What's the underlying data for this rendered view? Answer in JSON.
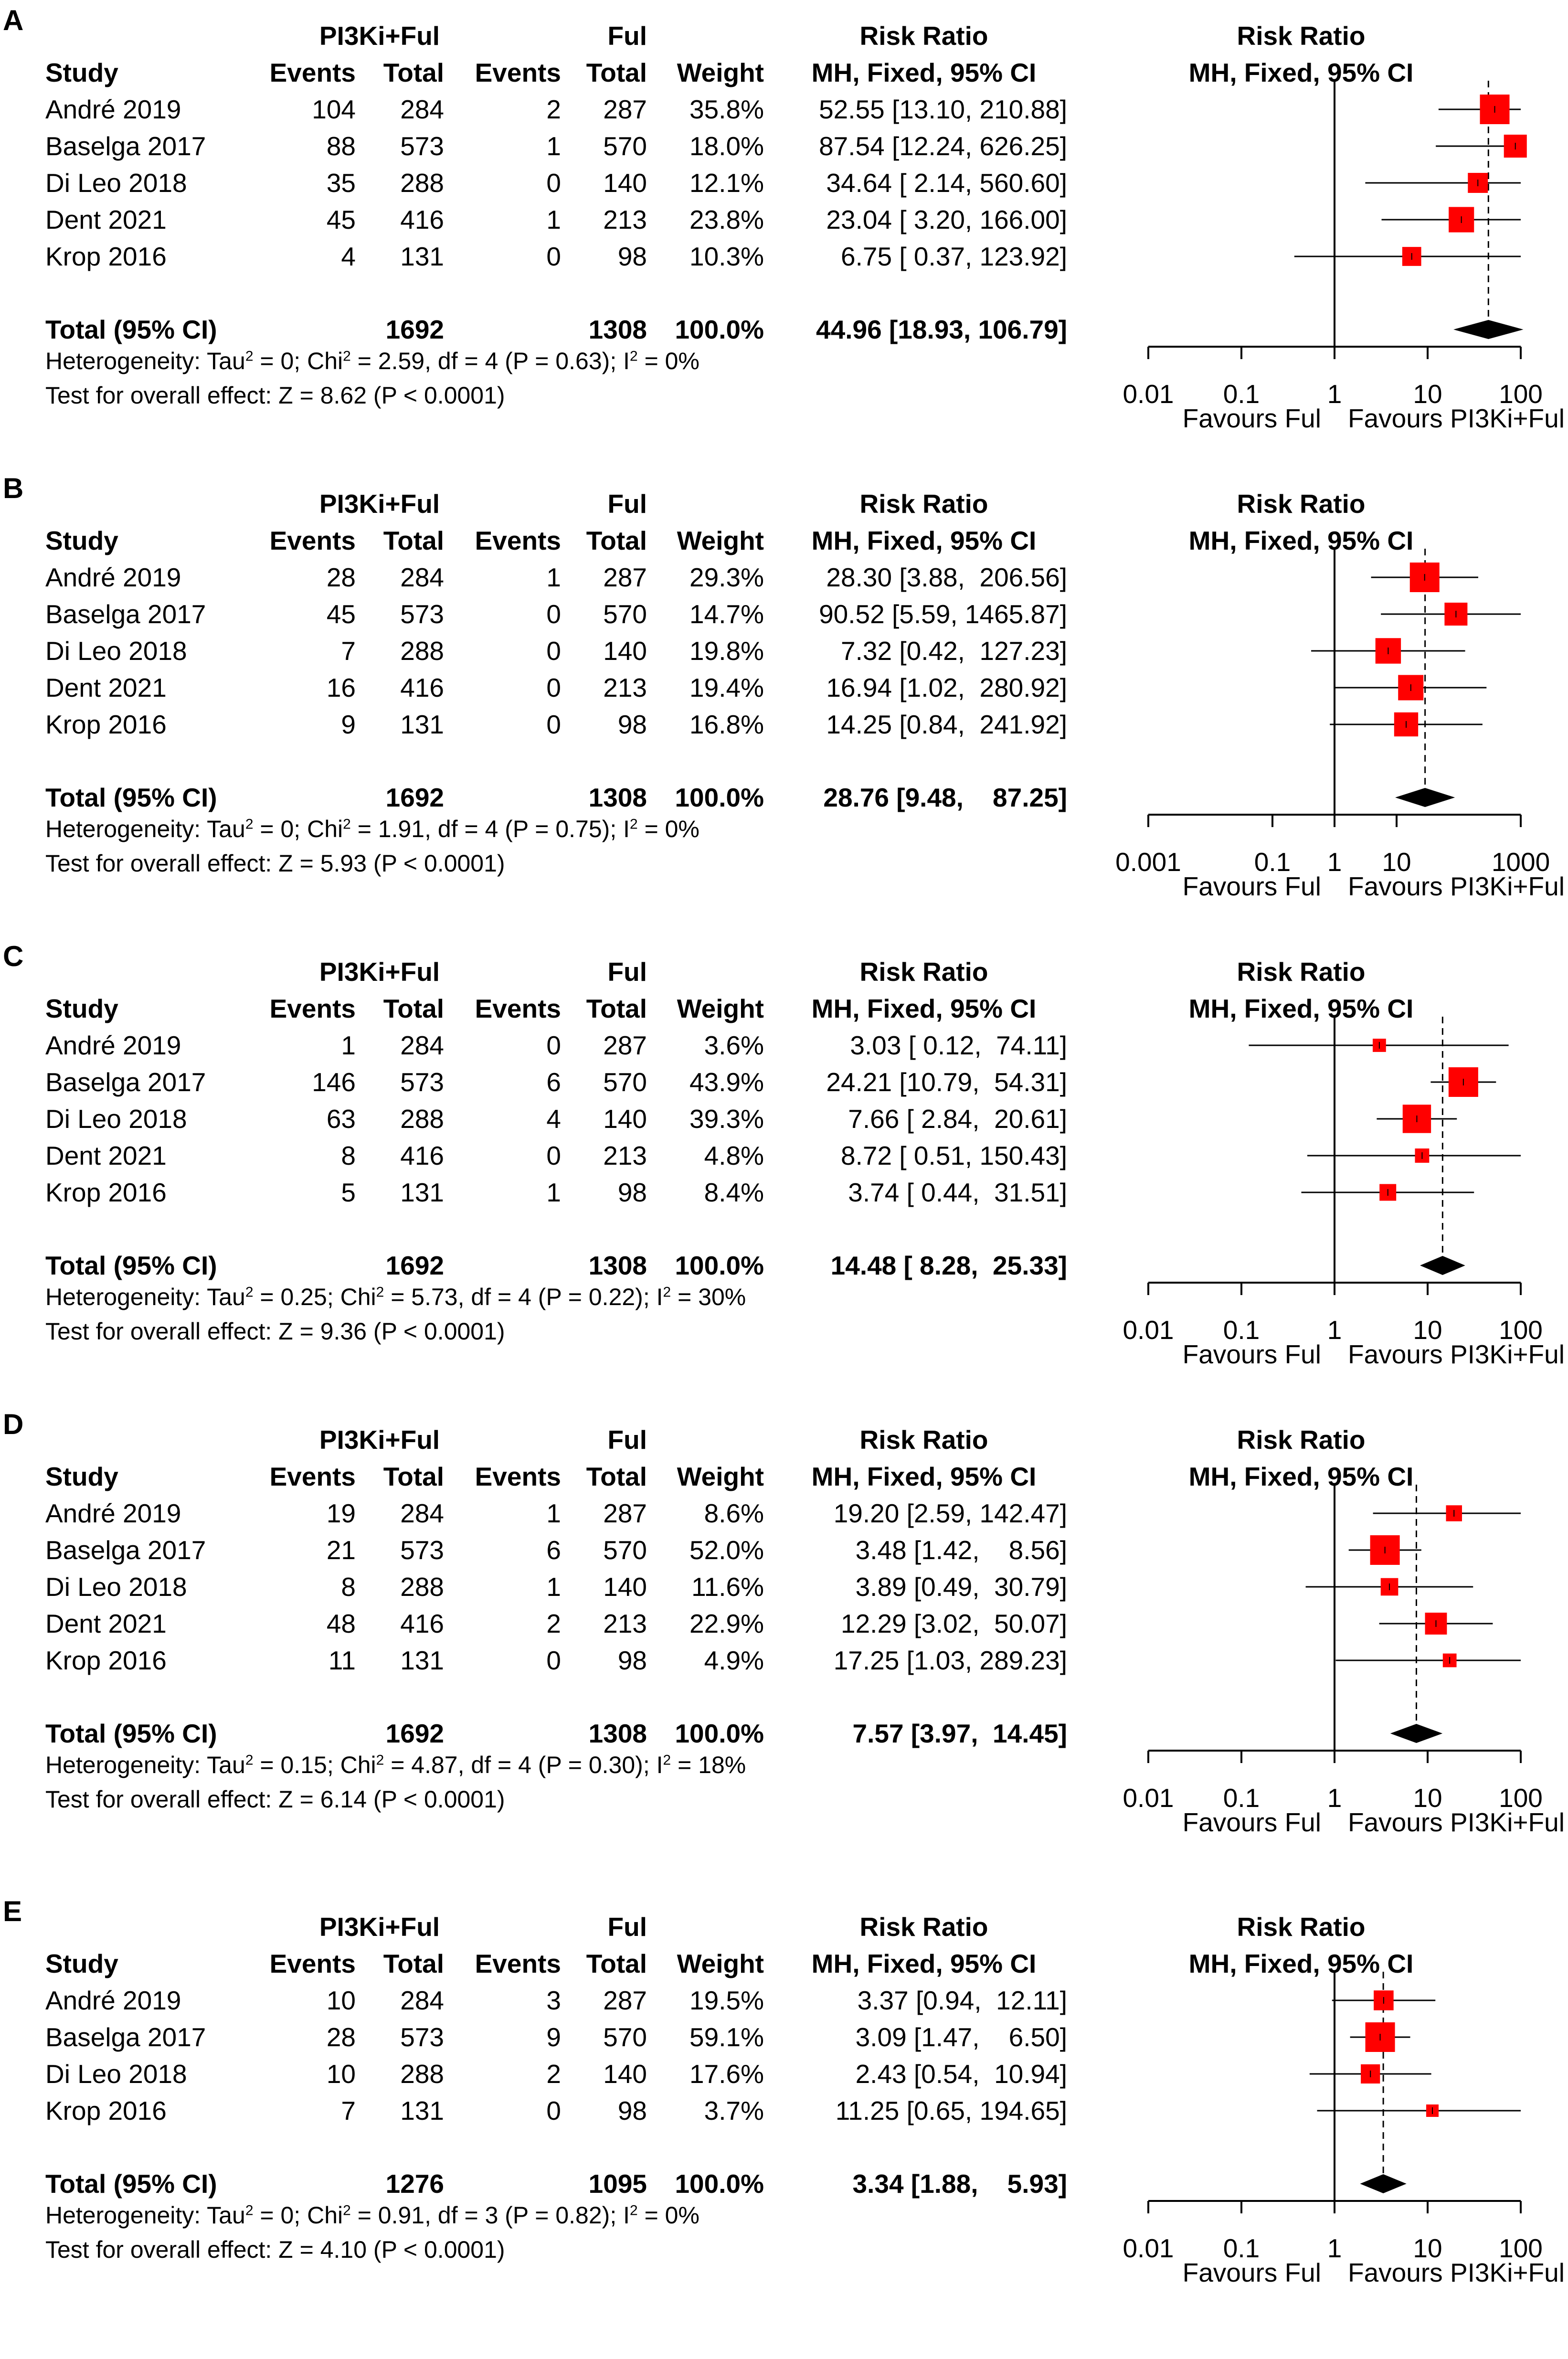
{
  "labels": {
    "study": "Study",
    "events": "Events",
    "total": "Total",
    "weight": "Weight",
    "group_exp": "PI3Ki+Ful",
    "group_ctrl": "Ful",
    "rr_title": "Risk Ratio",
    "rr_method": "MH, Fixed, 95% CI",
    "favours_left": "Favours Ful",
    "favours_right": "Favours PI3Ki+Ful",
    "total_row": "Total (95% CI)"
  },
  "colors": {
    "box": "#ff0000",
    "diamond": "#000000",
    "line": "#000000"
  },
  "chart_data": [
    {
      "panel": "A",
      "type": "forest",
      "scale": "log",
      "axis_ticks": [
        "0.01",
        "0.1",
        "1",
        "10",
        "100"
      ],
      "axis_range": [
        0.01,
        100
      ],
      "studies": [
        {
          "name": "André 2019",
          "ev_e": "104",
          "tot_e": "284",
          "ev_c": "2",
          "tot_c": "287",
          "weight": "35.8%",
          "ci_text": "52.55 [13.10, 210.88]",
          "rr": 52.55,
          "lo": 13.1,
          "hi": 210.88,
          "w": 35.8
        },
        {
          "name": "Baselga 2017",
          "ev_e": "88",
          "tot_e": "573",
          "ev_c": "1",
          "tot_c": "570",
          "weight": "18.0%",
          "ci_text": "87.54 [12.24, 626.25]",
          "rr": 87.54,
          "lo": 12.24,
          "hi": 626.25,
          "w": 18.0
        },
        {
          "name": "Di Leo 2018",
          "ev_e": "35",
          "tot_e": "288",
          "ev_c": "0",
          "tot_c": "140",
          "weight": "12.1%",
          "ci_text": "34.64 [ 2.14, 560.60]",
          "rr": 34.64,
          "lo": 2.14,
          "hi": 560.6,
          "w": 12.1
        },
        {
          "name": "Dent 2021",
          "ev_e": "45",
          "tot_e": "416",
          "ev_c": "1",
          "tot_c": "213",
          "weight": "23.8%",
          "ci_text": "23.04 [ 3.20, 166.00]",
          "rr": 23.04,
          "lo": 3.2,
          "hi": 166.0,
          "w": 23.8
        },
        {
          "name": "Krop 2016",
          "ev_e": "4",
          "tot_e": "131",
          "ev_c": "0",
          "tot_c": "98",
          "weight": "10.3%",
          "ci_text": "6.75 [ 0.37, 123.92]",
          "rr": 6.75,
          "lo": 0.37,
          "hi": 123.92,
          "w": 10.3
        }
      ],
      "total": {
        "tot_e": "1692",
        "tot_c": "1308",
        "weight": "100.0%",
        "ci_text": "44.96 [18.93, 106.79]",
        "rr": 44.96,
        "lo": 18.93,
        "hi": 106.79
      },
      "heterogeneity": {
        "tau": "0",
        "chi": "2.59",
        "rest": ", df = 4 (P = 0.63); I",
        "i2": "0%"
      },
      "overall_effect": "Test for overall effect: Z = 8.62 (P < 0.0001)"
    },
    {
      "panel": "B",
      "type": "forest",
      "scale": "log",
      "axis_ticks": [
        "0.001",
        "0.1",
        "1",
        "10",
        "1000"
      ],
      "axis_range": [
        0.001,
        1000
      ],
      "studies": [
        {
          "name": "André 2019",
          "ev_e": "28",
          "tot_e": "284",
          "ev_c": "1",
          "tot_c": "287",
          "weight": "29.3%",
          "ci_text": "28.30 [3.88,  206.56]",
          "rr": 28.3,
          "lo": 3.88,
          "hi": 206.56,
          "w": 29.3
        },
        {
          "name": "Baselga 2017",
          "ev_e": "45",
          "tot_e": "573",
          "ev_c": "0",
          "tot_c": "570",
          "weight": "14.7%",
          "ci_text": "90.52 [5.59, 1465.87]",
          "rr": 90.52,
          "lo": 5.59,
          "hi": 1465.87,
          "w": 14.7
        },
        {
          "name": "Di Leo 2018",
          "ev_e": "7",
          "tot_e": "288",
          "ev_c": "0",
          "tot_c": "140",
          "weight": "19.8%",
          "ci_text": "7.32 [0.42,  127.23]",
          "rr": 7.32,
          "lo": 0.42,
          "hi": 127.23,
          "w": 19.8
        },
        {
          "name": "Dent 2021",
          "ev_e": "16",
          "tot_e": "416",
          "ev_c": "0",
          "tot_c": "213",
          "weight": "19.4%",
          "ci_text": "16.94 [1.02,  280.92]",
          "rr": 16.94,
          "lo": 1.02,
          "hi": 280.92,
          "w": 19.4
        },
        {
          "name": "Krop 2016",
          "ev_e": "9",
          "tot_e": "131",
          "ev_c": "0",
          "tot_c": "98",
          "weight": "16.8%",
          "ci_text": "14.25 [0.84,  241.92]",
          "rr": 14.25,
          "lo": 0.84,
          "hi": 241.92,
          "w": 16.8
        }
      ],
      "total": {
        "tot_e": "1692",
        "tot_c": "1308",
        "weight": "100.0%",
        "ci_text": "28.76 [9.48,    87.25]",
        "rr": 28.76,
        "lo": 9.48,
        "hi": 87.25
      },
      "heterogeneity": {
        "tau": "0",
        "chi": "1.91",
        "rest": ", df = 4 (P = 0.75); I",
        "i2": "0%"
      },
      "overall_effect": "Test for overall effect: Z = 5.93 (P < 0.0001)"
    },
    {
      "panel": "C",
      "type": "forest",
      "scale": "log",
      "axis_ticks": [
        "0.01",
        "0.1",
        "1",
        "10",
        "100"
      ],
      "axis_range": [
        0.01,
        100
      ],
      "studies": [
        {
          "name": "André 2019",
          "ev_e": "1",
          "tot_e": "284",
          "ev_c": "0",
          "tot_c": "287",
          "weight": "3.6%",
          "ci_text": "3.03 [ 0.12,  74.11]",
          "rr": 3.03,
          "lo": 0.12,
          "hi": 74.11,
          "w": 3.6
        },
        {
          "name": "Baselga 2017",
          "ev_e": "146",
          "tot_e": "573",
          "ev_c": "6",
          "tot_c": "570",
          "weight": "43.9%",
          "ci_text": "24.21 [10.79,  54.31]",
          "rr": 24.21,
          "lo": 10.79,
          "hi": 54.31,
          "w": 43.9
        },
        {
          "name": "Di Leo 2018",
          "ev_e": "63",
          "tot_e": "288",
          "ev_c": "4",
          "tot_c": "140",
          "weight": "39.3%",
          "ci_text": "7.66 [ 2.84,  20.61]",
          "rr": 7.66,
          "lo": 2.84,
          "hi": 20.61,
          "w": 39.3
        },
        {
          "name": "Dent 2021",
          "ev_e": "8",
          "tot_e": "416",
          "ev_c": "0",
          "tot_c": "213",
          "weight": "4.8%",
          "ci_text": "8.72 [ 0.51, 150.43]",
          "rr": 8.72,
          "lo": 0.51,
          "hi": 150.43,
          "w": 4.8
        },
        {
          "name": "Krop 2016",
          "ev_e": "5",
          "tot_e": "131",
          "ev_c": "1",
          "tot_c": "98",
          "weight": "8.4%",
          "ci_text": "3.74 [ 0.44,  31.51]",
          "rr": 3.74,
          "lo": 0.44,
          "hi": 31.51,
          "w": 8.4
        }
      ],
      "total": {
        "tot_e": "1692",
        "tot_c": "1308",
        "weight": "100.0%",
        "ci_text": "14.48 [ 8.28,  25.33]",
        "rr": 14.48,
        "lo": 8.28,
        "hi": 25.33
      },
      "heterogeneity": {
        "tau": "0.25",
        "chi": "5.73",
        "rest": ", df = 4 (P = 0.22); I",
        "i2": "30%"
      },
      "overall_effect": "Test for overall effect: Z = 9.36 (P < 0.0001)"
    },
    {
      "panel": "D",
      "type": "forest",
      "scale": "log",
      "axis_ticks": [
        "0.01",
        "0.1",
        "1",
        "10",
        "100"
      ],
      "axis_range": [
        0.01,
        100
      ],
      "studies": [
        {
          "name": "André 2019",
          "ev_e": "19",
          "tot_e": "284",
          "ev_c": "1",
          "tot_c": "287",
          "weight": "8.6%",
          "ci_text": "19.20 [2.59, 142.47]",
          "rr": 19.2,
          "lo": 2.59,
          "hi": 142.47,
          "w": 8.6
        },
        {
          "name": "Baselga 2017",
          "ev_e": "21",
          "tot_e": "573",
          "ev_c": "6",
          "tot_c": "570",
          "weight": "52.0%",
          "ci_text": "3.48 [1.42,    8.56]",
          "rr": 3.48,
          "lo": 1.42,
          "hi": 8.56,
          "w": 52.0
        },
        {
          "name": "Di Leo 2018",
          "ev_e": "8",
          "tot_e": "288",
          "ev_c": "1",
          "tot_c": "140",
          "weight": "11.6%",
          "ci_text": "3.89 [0.49,  30.79]",
          "rr": 3.89,
          "lo": 0.49,
          "hi": 30.79,
          "w": 11.6
        },
        {
          "name": "Dent 2021",
          "ev_e": "48",
          "tot_e": "416",
          "ev_c": "2",
          "tot_c": "213",
          "weight": "22.9%",
          "ci_text": "12.29 [3.02,  50.07]",
          "rr": 12.29,
          "lo": 3.02,
          "hi": 50.07,
          "w": 22.9
        },
        {
          "name": "Krop 2016",
          "ev_e": "11",
          "tot_e": "131",
          "ev_c": "0",
          "tot_c": "98",
          "weight": "4.9%",
          "ci_text": "17.25 [1.03, 289.23]",
          "rr": 17.25,
          "lo": 1.03,
          "hi": 289.23,
          "w": 4.9
        }
      ],
      "total": {
        "tot_e": "1692",
        "tot_c": "1308",
        "weight": "100.0%",
        "ci_text": "7.57 [3.97,  14.45]",
        "rr": 7.57,
        "lo": 3.97,
        "hi": 14.45
      },
      "heterogeneity": {
        "tau": "0.15",
        "chi": "4.87",
        "rest": ", df = 4 (P = 0.30); I",
        "i2": "18%"
      },
      "overall_effect": "Test for overall effect: Z = 6.14 (P < 0.0001)"
    },
    {
      "panel": "E",
      "type": "forest",
      "scale": "log",
      "axis_ticks": [
        "0.01",
        "0.1",
        "1",
        "10",
        "100"
      ],
      "axis_range": [
        0.01,
        100
      ],
      "studies": [
        {
          "name": "André 2019",
          "ev_e": "10",
          "tot_e": "284",
          "ev_c": "3",
          "tot_c": "287",
          "weight": "19.5%",
          "ci_text": "3.37 [0.94,  12.11]",
          "rr": 3.37,
          "lo": 0.94,
          "hi": 12.11,
          "w": 19.5
        },
        {
          "name": "Baselga 2017",
          "ev_e": "28",
          "tot_e": "573",
          "ev_c": "9",
          "tot_c": "570",
          "weight": "59.1%",
          "ci_text": "3.09 [1.47,    6.50]",
          "rr": 3.09,
          "lo": 1.47,
          "hi": 6.5,
          "w": 59.1
        },
        {
          "name": "Di Leo 2018",
          "ev_e": "10",
          "tot_e": "288",
          "ev_c": "2",
          "tot_c": "140",
          "weight": "17.6%",
          "ci_text": "2.43 [0.54,  10.94]",
          "rr": 2.43,
          "lo": 0.54,
          "hi": 10.94,
          "w": 17.6
        },
        {
          "name": "Krop 2016",
          "ev_e": "7",
          "tot_e": "131",
          "ev_c": "0",
          "tot_c": "98",
          "weight": "3.7%",
          "ci_text": "11.25 [0.65, 194.65]",
          "rr": 11.25,
          "lo": 0.65,
          "hi": 194.65,
          "w": 3.7
        }
      ],
      "total": {
        "tot_e": "1276",
        "tot_c": "1095",
        "weight": "100.0%",
        "ci_text": "3.34 [1.88,    5.93]",
        "rr": 3.34,
        "lo": 1.88,
        "hi": 5.93
      },
      "heterogeneity": {
        "tau": "0",
        "chi": "0.91",
        "rest": ", df = 3 (P = 0.82); I",
        "i2": "0%"
      },
      "overall_effect": "Test for overall effect: Z = 4.10 (P < 0.0001)"
    }
  ]
}
